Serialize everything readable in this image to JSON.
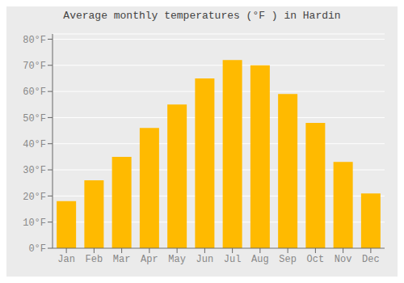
{
  "chart_data": {
    "type": "bar",
    "title": "Average monthly temperatures (°F ) in Hardin",
    "categories": [
      "Jan",
      "Feb",
      "Mar",
      "Apr",
      "May",
      "Jun",
      "Jul",
      "Aug",
      "Sep",
      "Oct",
      "Nov",
      "Dec"
    ],
    "values": [
      18,
      26,
      35,
      46,
      55,
      65,
      72,
      70,
      59,
      48,
      33,
      21
    ],
    "color": "#FFBA00",
    "ylim": [
      0,
      82
    ],
    "yticks": [
      {
        "value": 0,
        "label": "0°F"
      },
      {
        "value": 10,
        "label": "10°F"
      },
      {
        "value": 20,
        "label": "20°F"
      },
      {
        "value": 30,
        "label": "30°F"
      },
      {
        "value": 40,
        "label": "40°F"
      },
      {
        "value": 50,
        "label": "50°F"
      },
      {
        "value": 60,
        "label": "60°F"
      },
      {
        "value": 70,
        "label": "70°F"
      },
      {
        "value": 80,
        "label": "80°F"
      }
    ],
    "grid": true
  }
}
